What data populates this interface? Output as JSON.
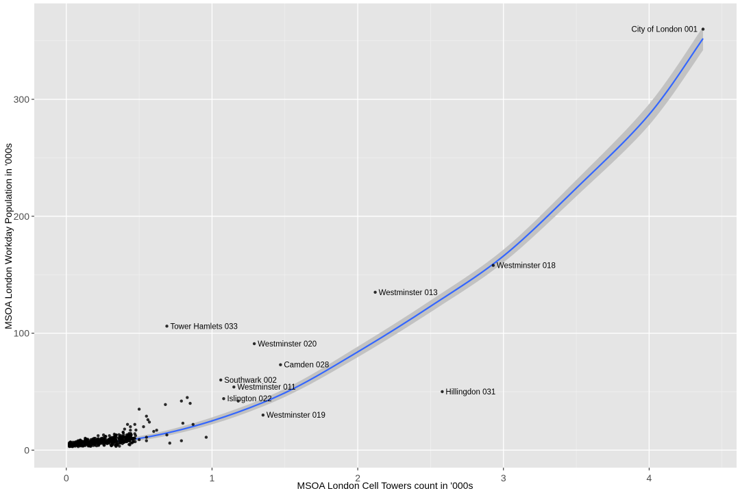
{
  "chart_data": {
    "type": "scatter",
    "xlabel": "MSOA London Cell Towers count in '000s",
    "ylabel": "MSOA London Workday Population in '000s",
    "xlim": [
      -0.22,
      4.6
    ],
    "ylim": [
      -15,
      382
    ],
    "x_ticks": [
      0,
      1,
      2,
      3,
      4
    ],
    "y_ticks": [
      0,
      100,
      200,
      300
    ],
    "x_tick_labels": [
      "0",
      "1",
      "2",
      "3",
      "4"
    ],
    "y_tick_labels": [
      "0",
      "100",
      "200",
      "300"
    ],
    "grid": true,
    "legend": "none",
    "colors": {
      "panel": "#e5e5e5",
      "points": "#000000",
      "fit": "#3366ff",
      "ribbon": "#c2c2c2"
    },
    "labeled_points": [
      {
        "label": "City of London 001",
        "x": 4.37,
        "y": 360,
        "side": "left"
      },
      {
        "label": "Westminster 018",
        "x": 2.93,
        "y": 158,
        "side": "right"
      },
      {
        "label": "Westminster 013",
        "x": 2.12,
        "y": 135,
        "side": "right"
      },
      {
        "label": "Tower Hamlets 033",
        "x": 0.69,
        "y": 106,
        "side": "right"
      },
      {
        "label": "Westminster 020",
        "x": 1.29,
        "y": 91,
        "side": "right"
      },
      {
        "label": "Camden 028",
        "x": 1.47,
        "y": 73,
        "side": "right"
      },
      {
        "label": "Southwark 002",
        "x": 1.06,
        "y": 60,
        "side": "right"
      },
      {
        "label": "Westminster 011",
        "x": 1.15,
        "y": 54,
        "side": "right"
      },
      {
        "label": "Hillingdon 031",
        "x": 2.58,
        "y": 50,
        "side": "right"
      },
      {
        "label": "Islington 022",
        "x": 1.08,
        "y": 44,
        "side": "right"
      },
      {
        "label": "Westminster 019",
        "x": 1.35,
        "y": 30,
        "side": "right"
      }
    ],
    "other_points": [
      [
        0.68,
        39
      ],
      [
        0.79,
        42
      ],
      [
        0.83,
        45
      ],
      [
        0.85,
        40
      ],
      [
        0.5,
        35
      ],
      [
        0.55,
        29
      ],
      [
        0.56,
        26
      ],
      [
        0.53,
        20
      ],
      [
        0.57,
        24
      ],
      [
        0.47,
        22
      ],
      [
        0.44,
        20
      ],
      [
        0.42,
        22
      ],
      [
        0.8,
        23
      ],
      [
        0.87,
        22
      ],
      [
        0.96,
        11
      ],
      [
        0.79,
        8
      ],
      [
        0.71,
        6
      ],
      [
        0.69,
        13
      ],
      [
        1.18,
        42
      ],
      [
        0.62,
        17
      ],
      [
        0.55,
        11
      ],
      [
        0.55,
        8
      ],
      [
        0.47,
        14
      ],
      [
        0.42,
        12
      ],
      [
        0.4,
        18
      ],
      [
        0.44,
        17
      ],
      [
        0.5,
        9
      ],
      [
        0.6,
        16
      ]
    ],
    "dense_cluster": {
      "x_range": [
        0.02,
        0.48
      ],
      "y_range": [
        3,
        23
      ],
      "n": 420
    },
    "fit": {
      "method": "polynomial",
      "x": [
        0.02,
        0.5,
        1.0,
        1.5,
        2.0,
        2.5,
        3.0,
        3.5,
        4.0,
        4.37
      ],
      "y": [
        5,
        10,
        25,
        49,
        84,
        123,
        166,
        224,
        287,
        352
      ],
      "se_band": [
        2,
        2,
        3,
        3.5,
        4.5,
        5,
        5.5,
        7,
        9,
        10
      ]
    }
  }
}
